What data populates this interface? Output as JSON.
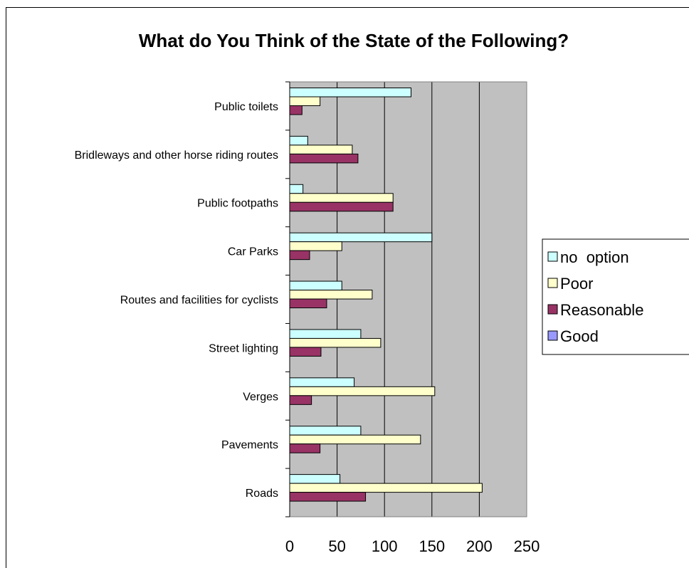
{
  "chart_data": {
    "type": "bar",
    "orientation": "horizontal",
    "title": "What do You Think of the State of the Following?",
    "xlabel": "",
    "ylabel": "",
    "categories": [
      "Public toilets",
      "Bridleways and other horse riding routes",
      "Public footpaths",
      "Car Parks",
      "Routes and facilities for cyclists",
      "Street lighting",
      "Verges",
      "Pavements",
      "Roads"
    ],
    "series": [
      {
        "name": "no  option",
        "color": "#ccffff",
        "values": [
          128,
          19,
          14,
          150,
          55,
          75,
          68,
          75,
          53
        ]
      },
      {
        "name": "Poor",
        "color": "#ffffcc",
        "values": [
          32,
          66,
          109,
          55,
          87,
          96,
          153,
          138,
          203
        ]
      },
      {
        "name": "Reasonable",
        "color": "#993366",
        "values": [
          13,
          72,
          109,
          21,
          39,
          33,
          23,
          32,
          80
        ]
      },
      {
        "name": "Good",
        "color": "#9999ff",
        "values": [
          0,
          0,
          0,
          0,
          0,
          0,
          0,
          0,
          0
        ]
      }
    ],
    "xlim": [
      0,
      250
    ],
    "xticks": [
      "0",
      "50",
      "100",
      "150",
      "200",
      "250"
    ],
    "grid": true,
    "plot_background": "#c0c0c0",
    "legend_position": "right"
  }
}
